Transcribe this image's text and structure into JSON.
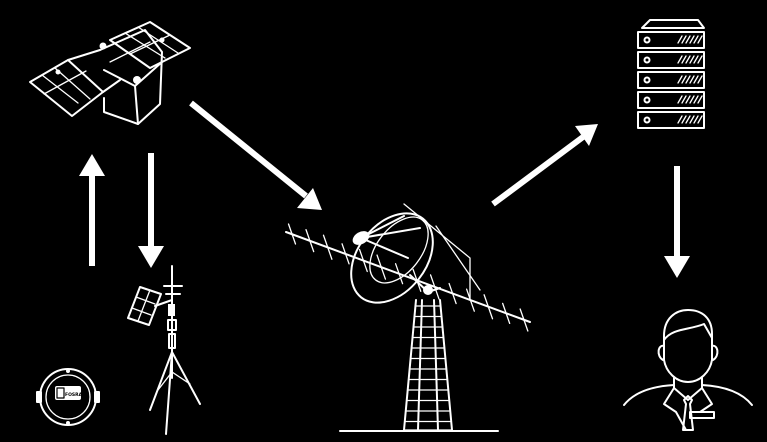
{
  "diagram": {
    "description_nodes": [
      "satellite",
      "ground-station-antenna",
      "data-server",
      "end-user",
      "weather-station-tripod",
      "sensor-logger"
    ],
    "sensor_label": "FOSRA",
    "colors": {
      "background": "#000000",
      "foreground": "#ffffff"
    },
    "icons": {
      "satellite": "satellite-icon",
      "antenna": "ground-station-antenna-icon",
      "server": "server-rack-icon",
      "user": "user-businessman-icon",
      "tripod": "weather-station-tripod-icon",
      "sensor": "sensor-logger-icon"
    }
  }
}
